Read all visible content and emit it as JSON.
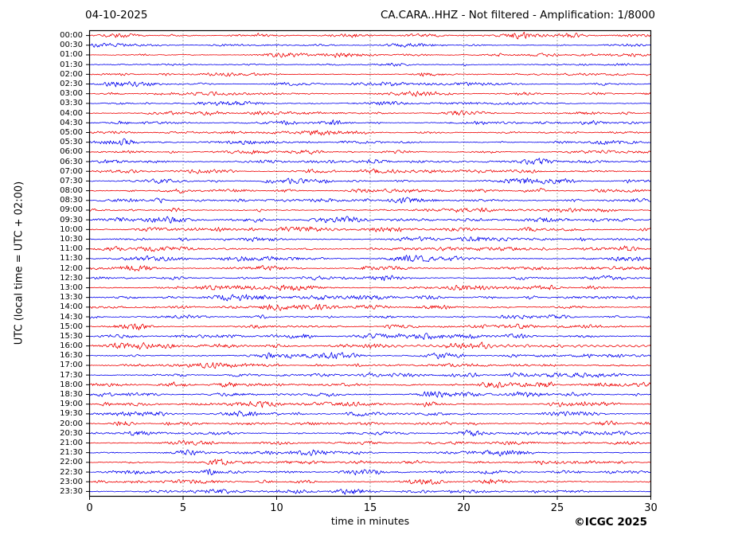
{
  "header": {
    "date": "04-10-2025",
    "title": "CA.CARA..HHZ - Not filtered - Amplification: 1/8000"
  },
  "y_axis_label": "UTC (local time = UTC + 02:00)",
  "x_axis": {
    "label": "time in minutes",
    "ticks": [
      0,
      5,
      10,
      15,
      20,
      25,
      30
    ],
    "range": [
      0,
      30
    ]
  },
  "footer": {
    "copyright": "©ICGC 2025"
  },
  "colors": {
    "trace_red": "#ee0000",
    "trace_blue": "#0000ee",
    "grid": "#444444",
    "frame": "#000000"
  },
  "chart_data": {
    "type": "line",
    "subtype": "helicorder-seismogram",
    "title": "CA.CARA..HHZ - Not filtered - Amplification: 1/8000",
    "date": "04-10-2025",
    "xlabel": "time in minutes",
    "ylabel": "UTC (local time = UTC + 02:00)",
    "x_range_minutes": [
      0,
      30
    ],
    "x_ticks": [
      0,
      5,
      10,
      15,
      20,
      25,
      30
    ],
    "minutes_per_line": 30,
    "lines": 48,
    "grid": "vertical dotted lines at 5-minute intervals",
    "legend": "none",
    "note": "Continuous ambient seismic noise waveform; trace colors alternate red/blue every 30 minutes; amp = relative noise amplitude estimated from pixels; wavy marks a visible low-frequency oscillation burst",
    "rows": [
      {
        "label": "00:00",
        "color": "red",
        "amp": 0.85,
        "wavy": false
      },
      {
        "label": "00:30",
        "color": "blue",
        "amp": 0.8,
        "wavy": false
      },
      {
        "label": "01:00",
        "color": "red",
        "amp": 0.8,
        "wavy": false
      },
      {
        "label": "01:30",
        "color": "blue",
        "amp": 0.8,
        "wavy": false
      },
      {
        "label": "02:00",
        "color": "red",
        "amp": 0.85,
        "wavy": false
      },
      {
        "label": "02:30",
        "color": "blue",
        "amp": 0.8,
        "wavy": false
      },
      {
        "label": "03:00",
        "color": "red",
        "amp": 0.85,
        "wavy": false
      },
      {
        "label": "03:30",
        "color": "blue",
        "amp": 0.8,
        "wavy": false
      },
      {
        "label": "04:00",
        "color": "red",
        "amp": 0.85,
        "wavy": false
      },
      {
        "label": "04:30",
        "color": "blue",
        "amp": 0.85,
        "wavy": false
      },
      {
        "label": "05:00",
        "color": "red",
        "amp": 0.8,
        "wavy": false
      },
      {
        "label": "05:30",
        "color": "blue",
        "amp": 0.9,
        "wavy": false
      },
      {
        "label": "06:00",
        "color": "red",
        "amp": 0.9,
        "wavy": false
      },
      {
        "label": "06:30",
        "color": "blue",
        "amp": 0.95,
        "wavy": false
      },
      {
        "label": "07:00",
        "color": "red",
        "amp": 1.0,
        "wavy": false
      },
      {
        "label": "07:30",
        "color": "blue",
        "amp": 1.0,
        "wavy": false
      },
      {
        "label": "08:00",
        "color": "red",
        "amp": 1.05,
        "wavy": false
      },
      {
        "label": "08:30",
        "color": "blue",
        "amp": 1.05,
        "wavy": false
      },
      {
        "label": "09:00",
        "color": "red",
        "amp": 1.1,
        "wavy": false
      },
      {
        "label": "09:30",
        "color": "blue",
        "amp": 1.15,
        "wavy": false
      },
      {
        "label": "10:00",
        "color": "red",
        "amp": 1.1,
        "wavy": false
      },
      {
        "label": "10:30",
        "color": "blue",
        "amp": 1.1,
        "wavy": false
      },
      {
        "label": "11:00",
        "color": "red",
        "amp": 1.15,
        "wavy": false
      },
      {
        "label": "11:30",
        "color": "blue",
        "amp": 1.2,
        "wavy": false
      },
      {
        "label": "12:00",
        "color": "red",
        "amp": 1.15,
        "wavy": false
      },
      {
        "label": "12:30",
        "color": "blue",
        "amp": 1.1,
        "wavy": false
      },
      {
        "label": "13:00",
        "color": "red",
        "amp": 1.1,
        "wavy": false
      },
      {
        "label": "13:30",
        "color": "blue",
        "amp": 1.15,
        "wavy": false
      },
      {
        "label": "14:00",
        "color": "red",
        "amp": 1.1,
        "wavy": false
      },
      {
        "label": "14:30",
        "color": "blue",
        "amp": 1.05,
        "wavy": false
      },
      {
        "label": "15:00",
        "color": "red",
        "amp": 1.1,
        "wavy": false
      },
      {
        "label": "15:30",
        "color": "blue",
        "amp": 1.2,
        "wavy": false
      },
      {
        "label": "16:00",
        "color": "red",
        "amp": 1.4,
        "wavy": true
      },
      {
        "label": "16:30",
        "color": "blue",
        "amp": 1.15,
        "wavy": false
      },
      {
        "label": "17:00",
        "color": "red",
        "amp": 0.95,
        "wavy": false
      },
      {
        "label": "17:30",
        "color": "blue",
        "amp": 1.1,
        "wavy": false
      },
      {
        "label": "18:00",
        "color": "red",
        "amp": 1.2,
        "wavy": false
      },
      {
        "label": "18:30",
        "color": "blue",
        "amp": 1.15,
        "wavy": false
      },
      {
        "label": "19:00",
        "color": "red",
        "amp": 1.15,
        "wavy": false
      },
      {
        "label": "19:30",
        "color": "blue",
        "amp": 1.1,
        "wavy": false
      },
      {
        "label": "20:00",
        "color": "red",
        "amp": 1.15,
        "wavy": false
      },
      {
        "label": "20:30",
        "color": "blue",
        "amp": 1.0,
        "wavy": false
      },
      {
        "label": "21:00",
        "color": "red",
        "amp": 1.05,
        "wavy": false
      },
      {
        "label": "21:30",
        "color": "blue",
        "amp": 0.95,
        "wavy": false
      },
      {
        "label": "22:00",
        "color": "red",
        "amp": 0.95,
        "wavy": false
      },
      {
        "label": "22:30",
        "color": "blue",
        "amp": 0.95,
        "wavy": false
      },
      {
        "label": "23:00",
        "color": "red",
        "amp": 0.95,
        "wavy": false
      },
      {
        "label": "23:30",
        "color": "blue",
        "amp": 0.9,
        "wavy": false
      }
    ]
  }
}
